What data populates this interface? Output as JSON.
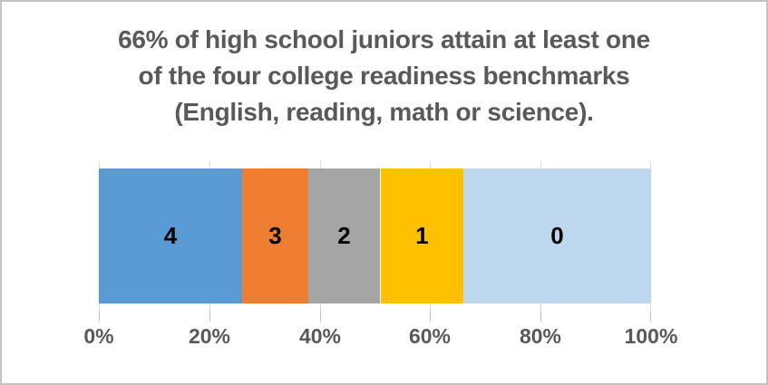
{
  "page": {
    "background": "#FFFFFF",
    "border_color": "#C4C4C4"
  },
  "title": {
    "lines": [
      "66% of high school juniors attain at least one",
      "of the four college readiness benchmarks",
      "(English, reading, math or science)."
    ],
    "color": "#595959"
  },
  "chart_data": {
    "type": "bar",
    "orientation": "horizontal",
    "stacked": true,
    "percent_of_total": true,
    "title": "66% of high school juniors attain at least one of the four college readiness benchmarks (English, reading, math or science).",
    "categories": [
      "4",
      "3",
      "2",
      "1",
      "0"
    ],
    "values": [
      26,
      12,
      13,
      15,
      34
    ],
    "series": [
      {
        "name": "4",
        "value": 26,
        "color": "#5B9BD5"
      },
      {
        "name": "3",
        "value": 12,
        "color": "#ED7D31"
      },
      {
        "name": "2",
        "value": 13,
        "color": "#A5A5A5"
      },
      {
        "name": "1",
        "value": 15,
        "color": "#FFC000"
      },
      {
        "name": "0",
        "value": 34,
        "color": "#BDD7EE"
      }
    ],
    "data_label_color": "#000000",
    "x_axis": {
      "tick_labels": [
        "0%",
        "20%",
        "40%",
        "60%",
        "80%",
        "100%"
      ],
      "range_pct": [
        0,
        100
      ],
      "tick_color": "#BFBFBF",
      "label_color": "#595959"
    },
    "gridlines": true,
    "gridline_color": "#D9D9D9",
    "legend": "none"
  }
}
